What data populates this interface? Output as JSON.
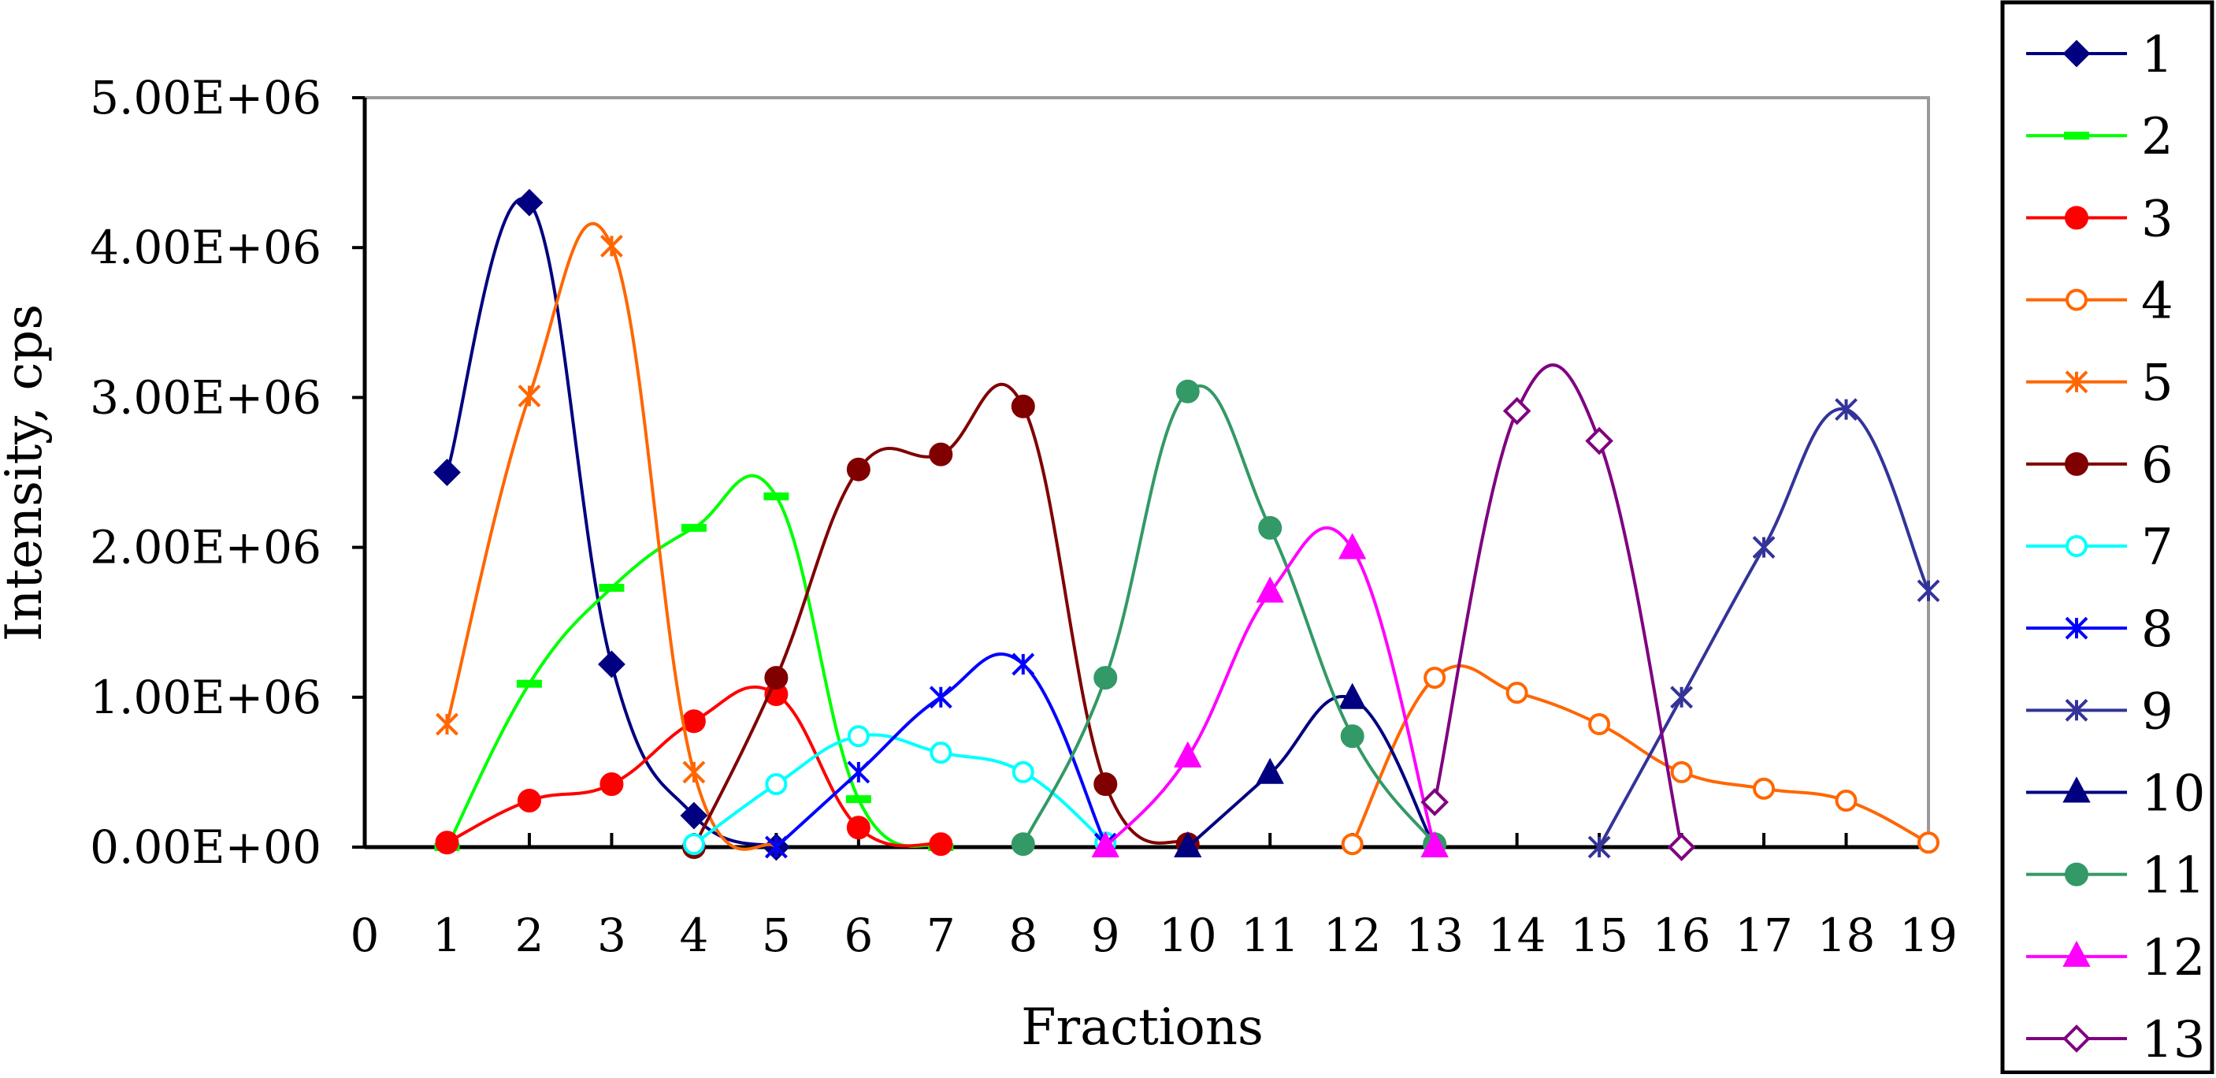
{
  "chart_data": {
    "type": "line",
    "title": "",
    "xlabel": "Fractions",
    "ylabel": "Intensity, cps",
    "xlim": [
      0,
      19
    ],
    "ylim": [
      0,
      5000000
    ],
    "grid": false,
    "legend_position": "right",
    "x_ticks": [
      "0",
      "1",
      "2",
      "3",
      "4",
      "5",
      "6",
      "7",
      "8",
      "9",
      "10",
      "11",
      "12",
      "13",
      "14",
      "15",
      "16",
      "17",
      "18",
      "19"
    ],
    "y_ticks": [
      "0.00E+00",
      "1.00E+06",
      "2.00E+06",
      "3.00E+06",
      "4.00E+06",
      "5.00E+06"
    ],
    "y_tick_values": [
      0,
      1000000,
      2000000,
      3000000,
      4000000,
      5000000
    ],
    "series": [
      {
        "name": "1",
        "color": "#000080",
        "marker": "diamond",
        "points": [
          [
            1,
            2500000
          ],
          [
            2,
            4300000
          ],
          [
            3,
            1220000
          ],
          [
            4,
            210000
          ],
          [
            5,
            0
          ]
        ]
      },
      {
        "name": "2",
        "color": "#00ff00",
        "marker": "dash",
        "points": [
          [
            1,
            0
          ],
          [
            2,
            1090000
          ],
          [
            3,
            1730000
          ],
          [
            4,
            2130000
          ],
          [
            5,
            2340000
          ],
          [
            6,
            320000
          ],
          [
            7,
            0
          ]
        ]
      },
      {
        "name": "3",
        "color": "#ff0000",
        "marker": "circle",
        "points": [
          [
            1,
            30000
          ],
          [
            2,
            310000
          ],
          [
            3,
            420000
          ],
          [
            4,
            840000
          ],
          [
            5,
            1020000
          ],
          [
            6,
            130000
          ],
          [
            7,
            20000
          ]
        ]
      },
      {
        "name": "4",
        "color": "#ff6600",
        "marker": "circle-open",
        "points": [
          [
            12,
            20000
          ],
          [
            13,
            1130000
          ],
          [
            14,
            1030000
          ],
          [
            15,
            820000
          ],
          [
            16,
            500000
          ],
          [
            17,
            390000
          ],
          [
            18,
            310000
          ],
          [
            19,
            30000
          ]
        ]
      },
      {
        "name": "5",
        "color": "#ff6600",
        "marker": "asterisk",
        "points": [
          [
            1,
            820000
          ],
          [
            2,
            3010000
          ],
          [
            3,
            4010000
          ],
          [
            4,
            500000
          ],
          [
            5,
            0
          ]
        ]
      },
      {
        "name": "6",
        "color": "#800000",
        "marker": "circle",
        "points": [
          [
            4,
            0
          ],
          [
            5,
            1130000
          ],
          [
            6,
            2520000
          ],
          [
            7,
            2620000
          ],
          [
            8,
            2940000
          ],
          [
            9,
            420000
          ],
          [
            10,
            20000
          ]
        ]
      },
      {
        "name": "7",
        "color": "#00ffff",
        "marker": "circle-open",
        "points": [
          [
            4,
            20000
          ],
          [
            5,
            420000
          ],
          [
            6,
            740000
          ],
          [
            7,
            630000
          ],
          [
            8,
            500000
          ],
          [
            9,
            30000
          ]
        ]
      },
      {
        "name": "8",
        "color": "#0000ff",
        "marker": "asterisk",
        "points": [
          [
            5,
            0
          ],
          [
            6,
            500000
          ],
          [
            7,
            1000000
          ],
          [
            8,
            1220000
          ],
          [
            9,
            20000
          ]
        ]
      },
      {
        "name": "9",
        "color": "#333399",
        "marker": "asterisk",
        "points": [
          [
            15,
            0
          ],
          [
            16,
            1000000
          ],
          [
            17,
            2000000
          ],
          [
            18,
            2920000
          ],
          [
            19,
            1710000
          ]
        ]
      },
      {
        "name": "10",
        "color": "#000080",
        "marker": "triangle",
        "points": [
          [
            10,
            0
          ],
          [
            11,
            490000
          ],
          [
            12,
            990000
          ],
          [
            13,
            0
          ]
        ]
      },
      {
        "name": "11",
        "color": "#339966",
        "marker": "circle",
        "points": [
          [
            8,
            20000
          ],
          [
            9,
            1130000
          ],
          [
            10,
            3040000
          ],
          [
            11,
            2130000
          ],
          [
            12,
            740000
          ],
          [
            13,
            20000
          ]
        ]
      },
      {
        "name": "12",
        "color": "#ff00ff",
        "marker": "triangle",
        "points": [
          [
            9,
            0
          ],
          [
            10,
            600000
          ],
          [
            11,
            1700000
          ],
          [
            12,
            1990000
          ],
          [
            13,
            0
          ]
        ]
      },
      {
        "name": "13",
        "color": "#800080",
        "marker": "diamond-open",
        "points": [
          [
            13,
            300000
          ],
          [
            14,
            2910000
          ],
          [
            15,
            2710000
          ],
          [
            16,
            0
          ]
        ]
      }
    ]
  }
}
